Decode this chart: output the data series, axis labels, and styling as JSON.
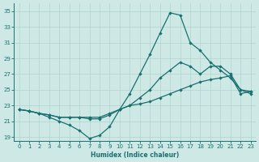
{
  "xlabel": "Humidex (Indice chaleur)",
  "background_color": "#cde8e5",
  "line_color": "#1a7070",
  "grid_color": "#afd4cf",
  "xlim": [
    -0.5,
    23.5
  ],
  "ylim": [
    18.5,
    36
  ],
  "yticks": [
    19,
    21,
    23,
    25,
    27,
    29,
    31,
    33,
    35
  ],
  "xticks": [
    0,
    1,
    2,
    3,
    4,
    5,
    6,
    7,
    8,
    9,
    10,
    11,
    12,
    13,
    14,
    15,
    16,
    17,
    18,
    19,
    20,
    21,
    22,
    23
  ],
  "series": [
    {
      "x": [
        0,
        1,
        2,
        3,
        4,
        5,
        6,
        7,
        8,
        9,
        10,
        11,
        12,
        13,
        14,
        15,
        16,
        17,
        18,
        19,
        20,
        21,
        22,
        23
      ],
      "y": [
        22.5,
        22.3,
        22.0,
        21.5,
        21.0,
        20.5,
        19.8,
        18.8,
        19.2,
        20.3,
        22.5,
        24.5,
        27.0,
        29.5,
        32.2,
        34.8,
        34.5,
        31.0,
        30.0,
        28.5,
        27.5,
        26.5,
        25.0,
        24.5
      ]
    },
    {
      "x": [
        0,
        1,
        2,
        3,
        4,
        5,
        6,
        7,
        8,
        9,
        10,
        11,
        12,
        13,
        14,
        15,
        16,
        17,
        18,
        19,
        20,
        21,
        22,
        23
      ],
      "y": [
        22.5,
        22.3,
        22.0,
        21.8,
        21.5,
        21.5,
        21.5,
        21.3,
        21.3,
        21.8,
        22.5,
        23.0,
        24.0,
        25.0,
        26.5,
        27.5,
        28.5,
        28.0,
        27.0,
        28.0,
        28.0,
        27.0,
        25.0,
        24.8
      ]
    },
    {
      "x": [
        0,
        1,
        2,
        3,
        4,
        5,
        6,
        7,
        8,
        9,
        10,
        11,
        12,
        13,
        14,
        15,
        16,
        17,
        18,
        19,
        20,
        21,
        22,
        23
      ],
      "y": [
        22.5,
        22.3,
        22.0,
        21.8,
        21.5,
        21.5,
        21.5,
        21.5,
        21.5,
        22.0,
        22.5,
        23.0,
        23.2,
        23.5,
        24.0,
        24.5,
        25.0,
        25.5,
        26.0,
        26.3,
        26.5,
        26.8,
        24.5,
        24.8
      ]
    }
  ]
}
